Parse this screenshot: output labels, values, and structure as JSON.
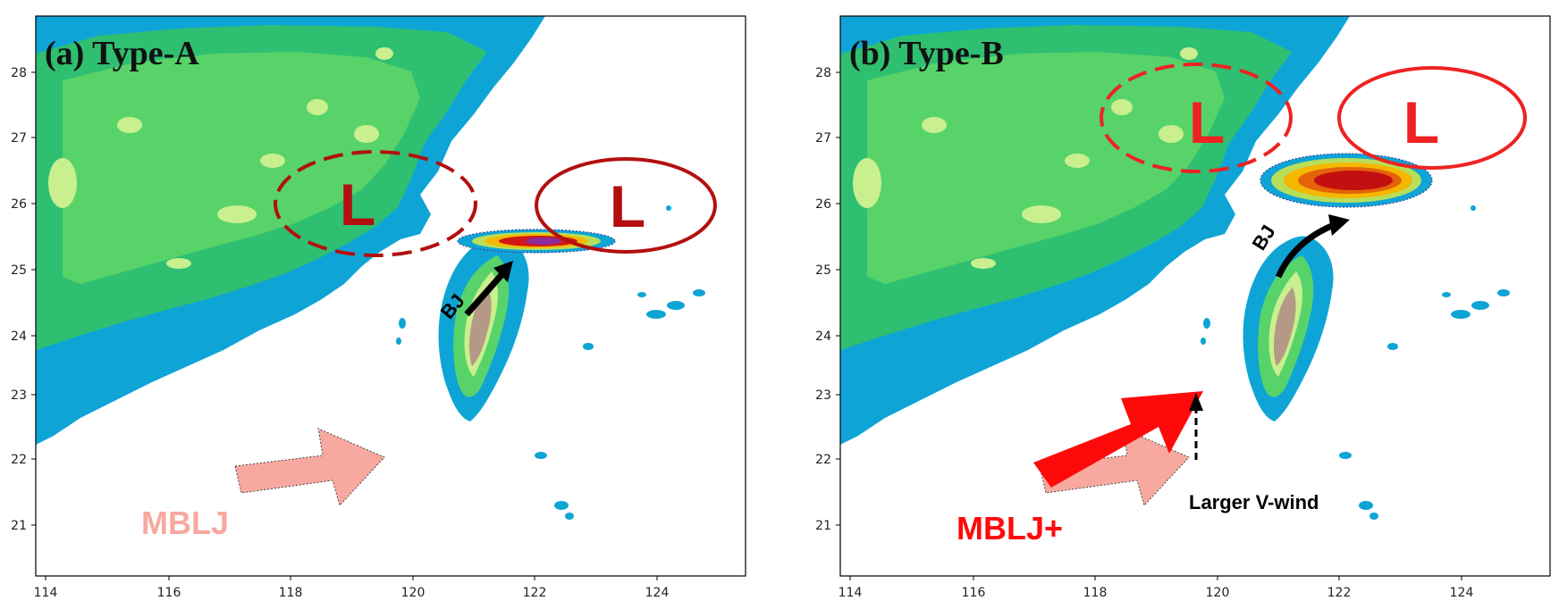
{
  "panels": [
    {
      "title": "(a) Type-A",
      "low_left": "L",
      "low_right": "L",
      "bj_label": "BJ",
      "jet_label": "MBLJ",
      "y_ticks": [
        "28",
        "27",
        "26",
        "25",
        "24",
        "23",
        "22",
        "21"
      ],
      "x_ticks": [
        "114",
        "116",
        "118",
        "120",
        "122",
        "124"
      ]
    },
    {
      "title": "(b) Type-B",
      "low_left": "L",
      "low_right": "L",
      "bj_label": "BJ",
      "jet_label": "MBLJ+",
      "v_wind_label": "Larger V-wind",
      "y_ticks": [
        "28",
        "27",
        "26",
        "25",
        "24",
        "23",
        "22",
        "21"
      ],
      "x_ticks": [
        "114",
        "116",
        "118",
        "120",
        "122",
        "124"
      ]
    }
  ],
  "colors": {
    "sea_terrain": "#0ea5d6",
    "lowland": "#2fbf71",
    "midland": "#57d36a",
    "highland": "#c9ef8e",
    "mountain": "#b49a86",
    "low_ring": "#b30f0f",
    "low_ring_b": "#ee2222",
    "mblj_a": "#f7a9a0",
    "mblj_b": "#ff0a0a"
  }
}
